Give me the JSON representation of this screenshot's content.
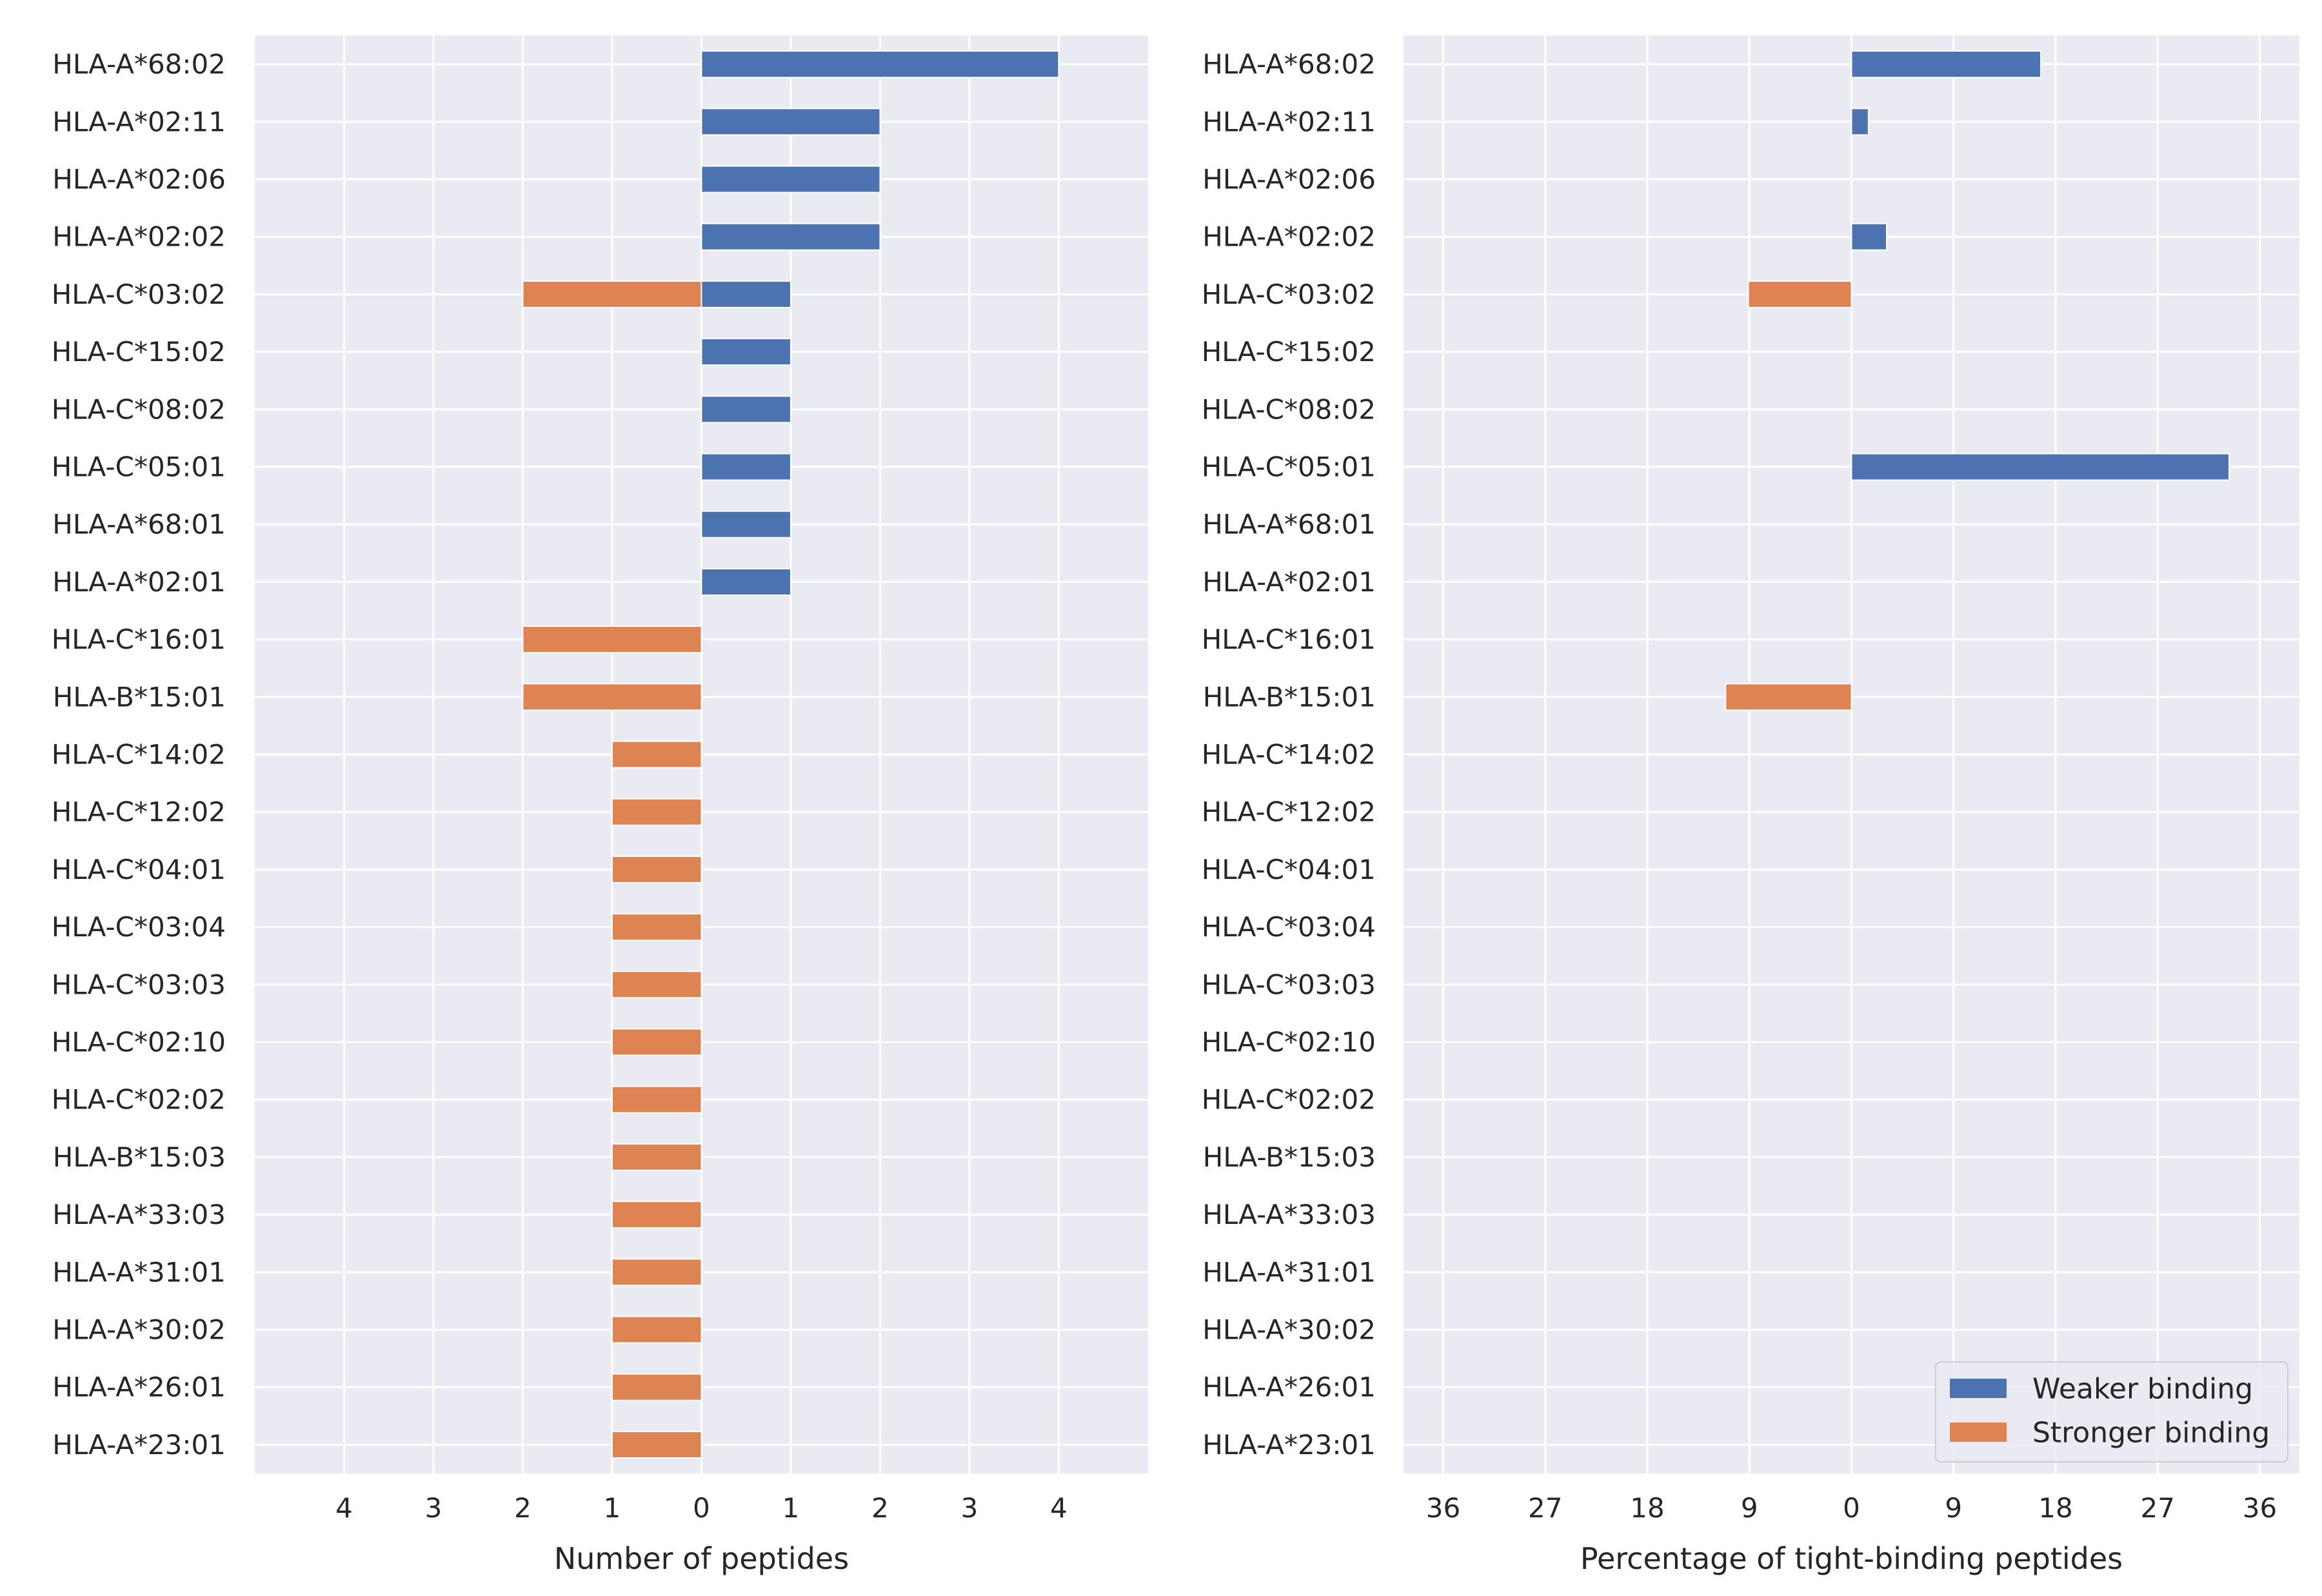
{
  "chart_data": [
    {
      "type": "bar",
      "orientation": "horizontal",
      "stacked_diverging": true,
      "categories": [
        "HLA-A*68:02",
        "HLA-A*02:11",
        "HLA-A*02:06",
        "HLA-A*02:02",
        "HLA-C*03:02",
        "HLA-C*15:02",
        "HLA-C*08:02",
        "HLA-C*05:01",
        "HLA-A*68:01",
        "HLA-A*02:01",
        "HLA-C*16:01",
        "HLA-B*15:01",
        "HLA-C*14:02",
        "HLA-C*12:02",
        "HLA-C*04:01",
        "HLA-C*03:04",
        "HLA-C*03:03",
        "HLA-C*02:10",
        "HLA-C*02:02",
        "HLA-B*15:03",
        "HLA-A*33:03",
        "HLA-A*31:01",
        "HLA-A*30:02",
        "HLA-A*26:01",
        "HLA-A*23:01"
      ],
      "series": [
        {
          "name": "Weaker binding",
          "color": "#4c72b0",
          "values": [
            4,
            2,
            2,
            2,
            1,
            1,
            1,
            1,
            1,
            1,
            0,
            0,
            0,
            0,
            0,
            0,
            0,
            0,
            0,
            0,
            0,
            0,
            0,
            0,
            0
          ]
        },
        {
          "name": "Stronger binding",
          "color": "#dd8452",
          "values": [
            0,
            0,
            0,
            0,
            -2,
            0,
            0,
            0,
            0,
            0,
            -2,
            -2,
            -1,
            -1,
            -1,
            -1,
            -1,
            -1,
            -1,
            -1,
            -1,
            -1,
            -1,
            -1,
            -1
          ]
        }
      ],
      "xlim": [
        -5,
        5
      ],
      "xticks": [
        -4,
        -3,
        -2,
        -1,
        0,
        1,
        2,
        3,
        4
      ],
      "xtick_labels": [
        "4",
        "3",
        "2",
        "1",
        "0",
        "1",
        "2",
        "3",
        "4"
      ],
      "xlabel": "Number of peptides",
      "ylabel": "",
      "grid": true
    },
    {
      "type": "bar",
      "orientation": "horizontal",
      "stacked_diverging": true,
      "categories": [
        "HLA-A*68:02",
        "HLA-A*02:11",
        "HLA-A*02:06",
        "HLA-A*02:02",
        "HLA-C*03:02",
        "HLA-C*15:02",
        "HLA-C*08:02",
        "HLA-C*05:01",
        "HLA-A*68:01",
        "HLA-A*02:01",
        "HLA-C*16:01",
        "HLA-B*15:01",
        "HLA-C*14:02",
        "HLA-C*12:02",
        "HLA-C*04:01",
        "HLA-C*03:04",
        "HLA-C*03:03",
        "HLA-C*02:10",
        "HLA-C*02:02",
        "HLA-B*15:03",
        "HLA-A*33:03",
        "HLA-A*31:01",
        "HLA-A*30:02",
        "HLA-A*26:01",
        "HLA-A*23:01"
      ],
      "series": [
        {
          "name": "Weaker binding",
          "color": "#4c72b0",
          "values": [
            16.7,
            1.5,
            0,
            3.1,
            0,
            0,
            0,
            33.3,
            0,
            0,
            0,
            0,
            0,
            0,
            0,
            0,
            0,
            0,
            0,
            0,
            0,
            0,
            0,
            0,
            0
          ]
        },
        {
          "name": "Stronger binding",
          "color": "#dd8452",
          "values": [
            0,
            0,
            0,
            0,
            -9.1,
            0,
            0,
            0,
            0,
            0,
            0,
            -11.1,
            0,
            0,
            0,
            0,
            0,
            0,
            0,
            0,
            0,
            0,
            0,
            0,
            0
          ]
        }
      ],
      "xlim": [
        -39.5,
        39.5
      ],
      "xticks": [
        -36,
        -27,
        -18,
        -9,
        0,
        9,
        18,
        27,
        36
      ],
      "xtick_labels": [
        "36",
        "27",
        "18",
        "9",
        "0",
        "9",
        "18",
        "27",
        "36"
      ],
      "xlabel": "Percentage of tight-binding peptides",
      "ylabel": "",
      "grid": true,
      "legend": {
        "position": "lower-right",
        "entries": [
          "Weaker binding",
          "Stronger binding"
        ]
      }
    }
  ]
}
